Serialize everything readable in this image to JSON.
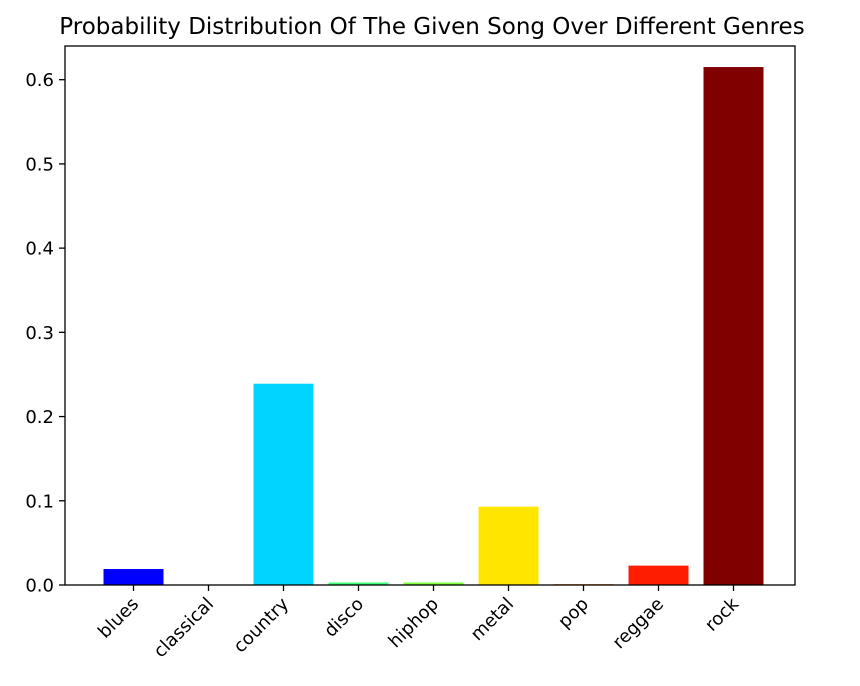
{
  "chart_data": {
    "type": "bar",
    "title": "Probability Distribution Of The Given Song Over Different Genres",
    "xlabel": "",
    "ylabel": "",
    "categories": [
      "blues",
      "classical",
      "country",
      "disco",
      "hiphop",
      "metal",
      "pop",
      "reggae",
      "rock"
    ],
    "values": [
      0.019,
      0.0005,
      0.239,
      0.003,
      0.003,
      0.093,
      0.001,
      0.023,
      0.615
    ],
    "colors": [
      "#0000ff",
      "#0000ff",
      "#00d4ff",
      "#3dff79",
      "#7dff3b",
      "#ffe600",
      "#ff8a00",
      "#ff1d00",
      "#800000"
    ],
    "ylim": [
      0,
      0.64
    ],
    "yticks": [
      0.0,
      0.1,
      0.2,
      0.3,
      0.4,
      0.5,
      0.6
    ],
    "ytick_labels": [
      "0.0",
      "0.1",
      "0.2",
      "0.3",
      "0.4",
      "0.5",
      "0.6"
    ],
    "grid": false,
    "legend": "none"
  }
}
